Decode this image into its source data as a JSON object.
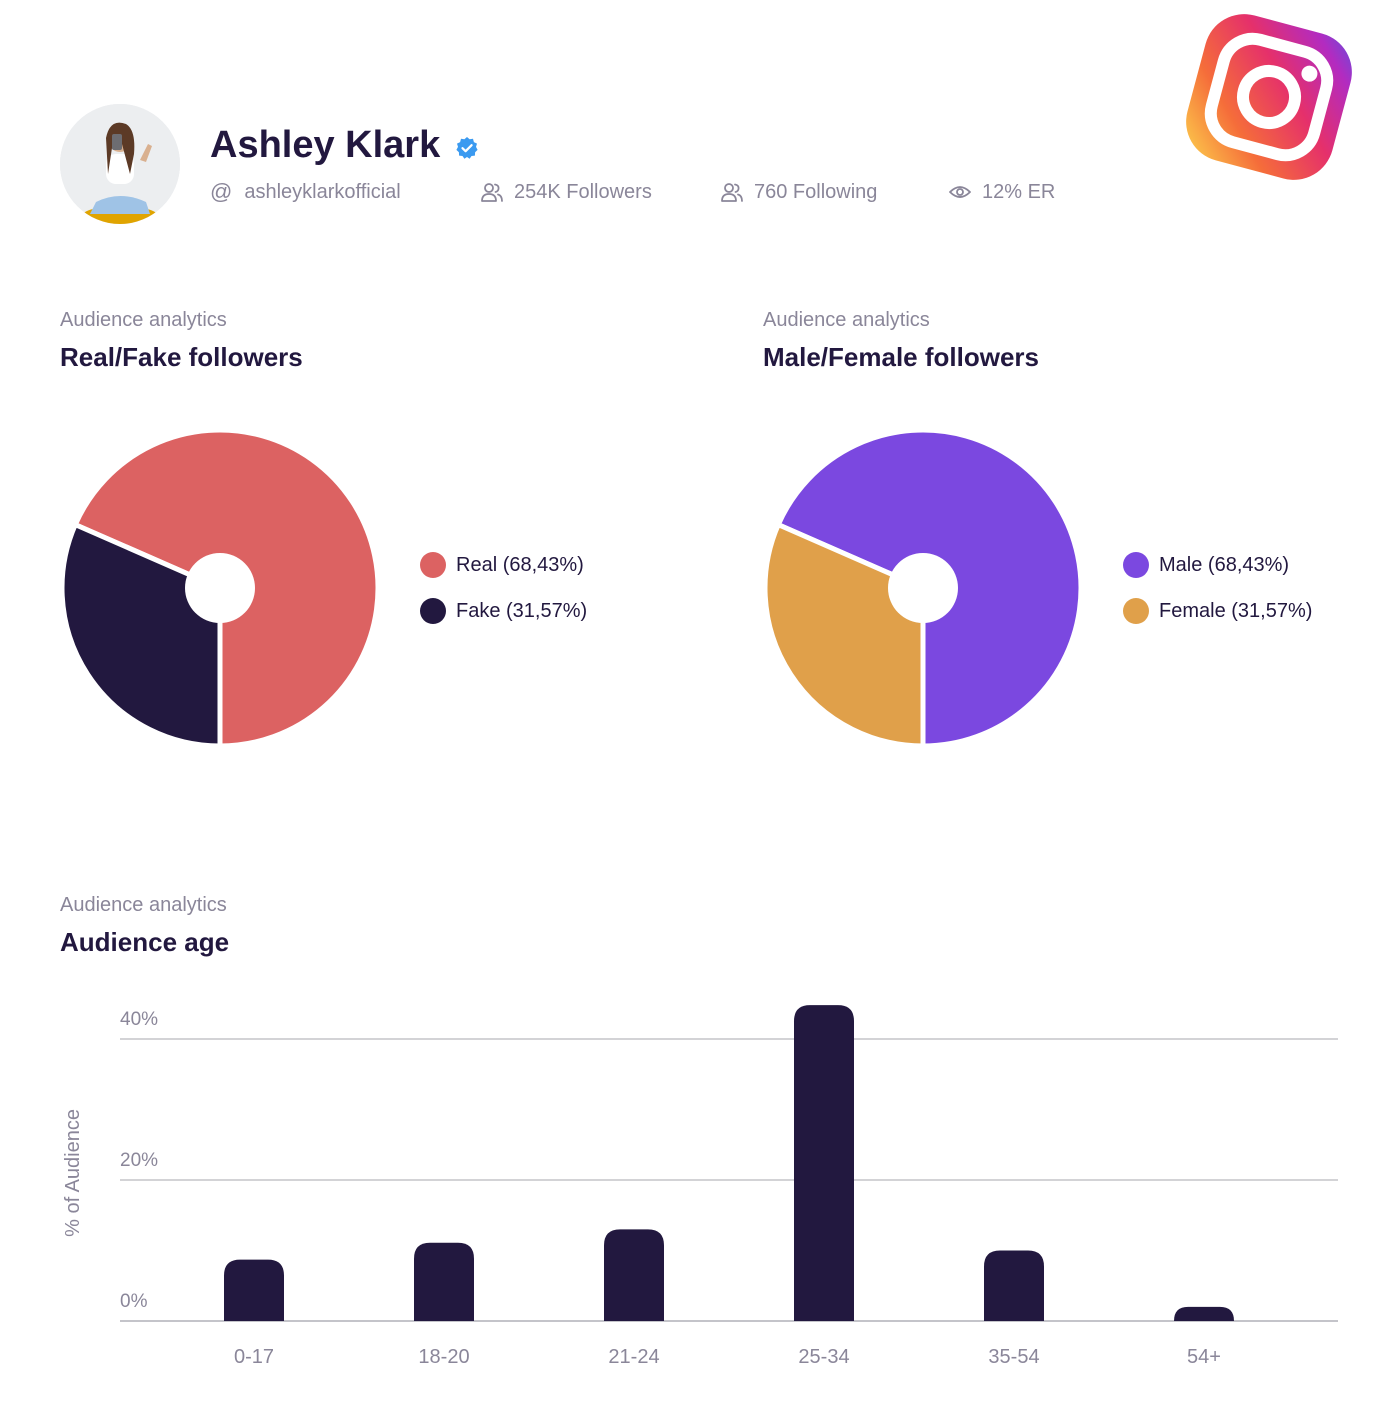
{
  "profile": {
    "name": "Ashley Klark",
    "handle": "ashleyklarkofficial",
    "handle_prefix": "@",
    "followers": "254K Followers",
    "following": "760 Following",
    "engagement": "12% ER",
    "verified_icon": "verified-badge-icon",
    "platform_icon": "instagram-logo-icon"
  },
  "colors": {
    "dark": "#22183f",
    "muted": "#8a8699",
    "real": "#dc6262",
    "fake": "#22183f",
    "male": "#7b48e0",
    "female": "#e0a04a",
    "verified": "#3b9af0"
  },
  "sections": {
    "real_fake": {
      "kicker": "Audience analytics",
      "title": "Real/Fake followers"
    },
    "gender": {
      "kicker": "Audience analytics",
      "title": "Male/Female followers"
    },
    "age": {
      "kicker": "Audience analytics",
      "title": "Audience age"
    }
  },
  "chart_data": [
    {
      "type": "pie",
      "title": "Real/Fake followers",
      "slices": [
        {
          "label": "Real (68,43%)",
          "value": 68.43,
          "color": "#dc6262"
        },
        {
          "label": "Fake (31,57%)",
          "value": 31.57,
          "color": "#22183f"
        }
      ],
      "legend": "right"
    },
    {
      "type": "pie",
      "title": "Male/Female followers",
      "slices": [
        {
          "label": "Male (68,43%)",
          "value": 68.43,
          "color": "#7b48e0"
        },
        {
          "label": "Female (31,57%)",
          "value": 31.57,
          "color": "#e0a04a"
        }
      ],
      "legend": "right"
    },
    {
      "type": "bar",
      "title": "Audience age",
      "ylabel": "% of Audience",
      "categories": [
        "0-17",
        "18-20",
        "21-24",
        "25-34",
        "35-54",
        "54+"
      ],
      "values": [
        8.7,
        11.1,
        13.0,
        44.8,
        10.0,
        2.0
      ],
      "yticks": [
        {
          "value": 0,
          "label": "0%"
        },
        {
          "value": 20,
          "label": "20%"
        },
        {
          "value": 40,
          "label": "40%"
        }
      ],
      "ylim": [
        0,
        45
      ],
      "grid": true,
      "color": "#22183f"
    }
  ]
}
